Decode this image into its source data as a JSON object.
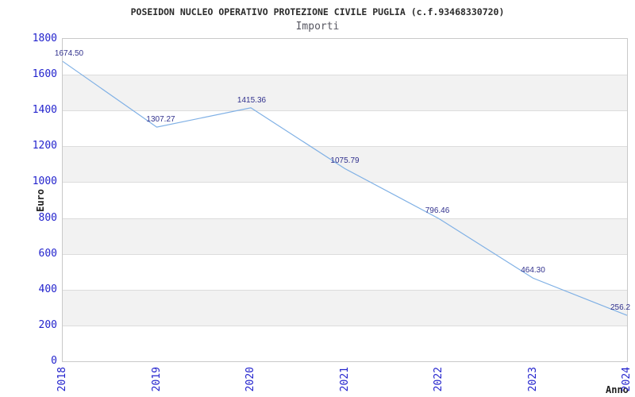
{
  "header": {
    "title": "POSEIDON NUCLEO OPERATIVO PROTEZIONE CIVILE PUGLIA (c.f.93468330720)",
    "subtitle": "Importi"
  },
  "chart_data": {
    "type": "line",
    "title": "POSEIDON NUCLEO OPERATIVO PROTEZIONE CIVILE PUGLIA (c.f.93468330720)",
    "subtitle": "Importi",
    "xlabel": "Anno",
    "ylabel": "Euro",
    "categories": [
      "2018",
      "2019",
      "2020",
      "2021",
      "2022",
      "2023",
      "2024"
    ],
    "series": [
      {
        "name": "Importi",
        "values": [
          1674.5,
          1307.27,
          1415.36,
          1075.79,
          796.46,
          464.3,
          256.2
        ]
      }
    ],
    "point_labels": [
      "1674.50",
      "1307.27",
      "1415.36",
      "1075.79",
      "796.46",
      "464.30",
      "256.2"
    ],
    "ylim": [
      0,
      1800
    ],
    "ytick_step": 200,
    "yticks": [
      "1800",
      "1600",
      "1400",
      "1200",
      "1000",
      "800",
      "600",
      "400",
      "200",
      "0"
    ],
    "grid": true,
    "legend": false,
    "plot_bands": "alternating horizontal gray stripes every 200 units (1600-1400, 1200-1000, 800-600, 400-200)",
    "colors": {
      "line": "#7fb0e5",
      "tick_label": "#2323cd",
      "data_label": "#31318d",
      "band": "#f2f2f2",
      "gridline": "#dcdcdc",
      "plot_border": "#c9c9c9",
      "title": "#2b2b2b",
      "subtitle": "#575761",
      "axis_title": "#1f1f1f"
    }
  }
}
